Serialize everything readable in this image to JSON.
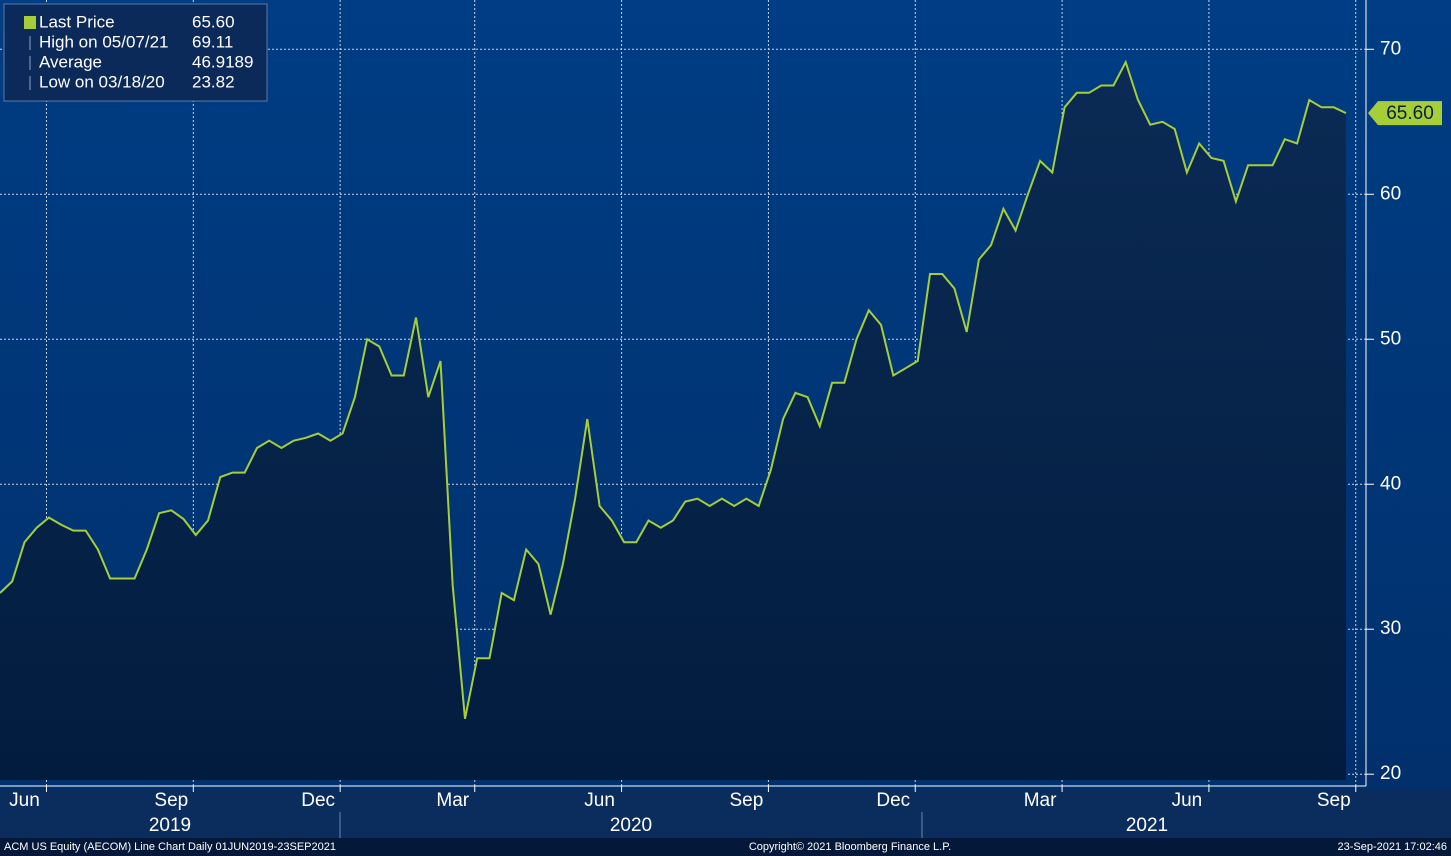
{
  "chart_data": {
    "type": "line",
    "series": [
      {
        "name": "Last Price",
        "color": "#a6ce39",
        "values": [
          32.5,
          33.3,
          36,
          37,
          37.7,
          37.2,
          36.8,
          36.8,
          35.5,
          33.5,
          33.5,
          33.5,
          35.5,
          38,
          38.2,
          37.6,
          36.5,
          37.5,
          40.5,
          40.8,
          40.8,
          42.5,
          43,
          42.5,
          43,
          43.2,
          43.5,
          43,
          43.5,
          46,
          50,
          49.5,
          47.5,
          47.5,
          51.5,
          46,
          48.5,
          33,
          23.82,
          28,
          28,
          32.5,
          32,
          35.5,
          34.5,
          31,
          34.5,
          39,
          44.5,
          38.5,
          37.5,
          36,
          36,
          37.5,
          37,
          37.5,
          38.8,
          39,
          38.5,
          39,
          38.5,
          39,
          38.5,
          41,
          44.5,
          46.3,
          46,
          44,
          47,
          47,
          50,
          52,
          51,
          47.5,
          48,
          48.5,
          54.5,
          54.5,
          53.5,
          50.5,
          55.5,
          56.5,
          59,
          57.5,
          60,
          62.3,
          61.5,
          66,
          67,
          67,
          67.5,
          67.5,
          69.11,
          66.5,
          64.8,
          65,
          64.5,
          61.5,
          63.5,
          62.5,
          62.3,
          59.5,
          62,
          62,
          62,
          63.8,
          63.5,
          66.5,
          66,
          66,
          65.6
        ]
      }
    ],
    "categories": [
      null,
      null,
      "Jun",
      null,
      null,
      null,
      null,
      null,
      null,
      null,
      null,
      null,
      null,
      null,
      "Sep",
      null,
      null,
      null,
      null,
      null,
      null,
      null,
      null,
      null,
      null,
      null,
      "Dec",
      null,
      null,
      null,
      null,
      null,
      null,
      null,
      null,
      null,
      null,
      "Mar",
      null,
      null,
      null,
      null,
      null,
      null,
      null,
      null,
      null,
      null,
      null,
      "Jun",
      null,
      null,
      null,
      null,
      null,
      null,
      null,
      null,
      null,
      null,
      null,
      "Sep",
      null,
      null,
      null,
      null,
      null,
      null,
      null,
      null,
      null,
      null,
      null,
      "Dec",
      null,
      null,
      null,
      null,
      null,
      null,
      null,
      null,
      null,
      null,
      null,
      "Mar",
      null,
      null,
      null,
      null,
      null,
      null,
      null,
      null,
      null,
      null,
      null,
      "Jun",
      null,
      null,
      null,
      null,
      null,
      null,
      null,
      null,
      null,
      null,
      null,
      "Sep",
      null
    ],
    "years": [
      "2019",
      "2020",
      "2021"
    ],
    "ylim": [
      19.6,
      73.4
    ],
    "yticks": [
      20,
      30,
      40,
      50,
      60,
      70
    ],
    "grid": true,
    "legend": {
      "labels": [
        "Last Price",
        "High on 05/07/21",
        "Average",
        "Low on 03/18/20"
      ],
      "values": [
        65.6,
        69.11,
        46.9189,
        23.82
      ],
      "value_labels": [
        "65.60",
        "69.11",
        "46.9189",
        "23.82"
      ]
    },
    "footer": {
      "left": "ACM US Equity (AECOM) Line Chart  Daily 01JUN2019-23SEP2021",
      "center": "Copyright© 2021 Bloomberg Finance L.P.",
      "right": "23-Sep-2021 17:02:46"
    }
  }
}
